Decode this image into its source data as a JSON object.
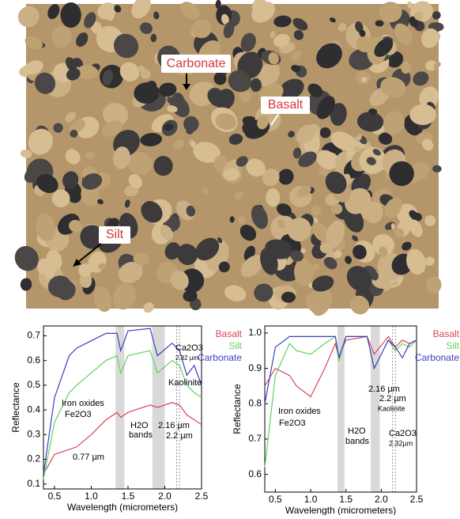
{
  "photo": {
    "labels": [
      "Carbonate",
      "Basalt",
      "Silt"
    ]
  },
  "chart_data": [
    {
      "type": "line",
      "xlabel": "Wavelength (micrometers)",
      "ylabel": "Reflectance",
      "x": [
        0.35,
        0.5,
        0.7,
        0.8,
        1.0,
        1.2,
        1.35,
        1.4,
        1.5,
        1.8,
        1.9,
        2.1,
        2.2,
        2.3,
        2.4,
        2.5
      ],
      "series": [
        {
          "name": "Basalt",
          "color": "#d9455a",
          "values": [
            0.14,
            0.22,
            0.24,
            0.25,
            0.3,
            0.36,
            0.39,
            0.37,
            0.39,
            0.42,
            0.41,
            0.43,
            0.42,
            0.38,
            0.36,
            0.34
          ]
        },
        {
          "name": "Silt",
          "color": "#5fd35f",
          "values": [
            0.12,
            0.35,
            0.47,
            0.5,
            0.55,
            0.6,
            0.62,
            0.55,
            0.62,
            0.64,
            0.55,
            0.6,
            0.58,
            0.5,
            0.47,
            0.45
          ]
        },
        {
          "name": "Carbonate",
          "color": "#3f3fbf",
          "values": [
            0.14,
            0.45,
            0.62,
            0.65,
            0.68,
            0.71,
            0.71,
            0.64,
            0.72,
            0.73,
            0.62,
            0.67,
            0.64,
            0.54,
            0.58,
            0.5
          ]
        }
      ],
      "xlim": [
        0.35,
        2.5
      ],
      "ylim": [
        0.08,
        0.74
      ],
      "xticks": [
        0.5,
        {
          "value": 1,
          "label": "1.0"
        },
        1.5,
        {
          "value": 2,
          "label": "2.0"
        },
        2.5
      ],
      "yticks": [
        0.1,
        0.2,
        0.3,
        0.4,
        0.5,
        0.6,
        0.7
      ],
      "shaded": [
        [
          1.33,
          1.45
        ],
        [
          1.83,
          2.0
        ]
      ],
      "vlines": [
        2.16,
        2.2
      ],
      "annotations": [
        "Ca2O3",
        "2.32 µm",
        "Kaolinite",
        "Iron oxides",
        "Fe2O3",
        "H2O",
        "bands",
        "2.16 µm",
        "2.2 µm",
        "0.77 µm"
      ]
    },
    {
      "type": "line",
      "xlabel": "Wavelength (micrometers)",
      "ylabel": "Reflectance",
      "x": [
        0.35,
        0.5,
        0.7,
        0.8,
        1.0,
        1.2,
        1.35,
        1.4,
        1.5,
        1.8,
        1.9,
        2.1,
        2.2,
        2.3,
        2.4,
        2.5
      ],
      "series": [
        {
          "name": "Basalt",
          "color": "#d9455a",
          "values": [
            0.85,
            0.9,
            0.88,
            0.85,
            0.82,
            0.9,
            0.97,
            0.93,
            0.98,
            0.99,
            0.94,
            0.99,
            0.96,
            0.98,
            0.97,
            0.98
          ]
        },
        {
          "name": "Silt",
          "color": "#5fd35f",
          "values": [
            0.62,
            0.88,
            0.97,
            0.95,
            0.94,
            0.97,
            0.99,
            0.92,
            0.99,
            0.99,
            0.9,
            0.98,
            0.95,
            0.97,
            0.96,
            0.98
          ]
        },
        {
          "name": "Carbonate",
          "color": "#3f3fbf",
          "values": [
            0.8,
            0.96,
            0.99,
            0.99,
            0.99,
            0.99,
            0.99,
            0.93,
            0.99,
            0.99,
            0.9,
            0.98,
            0.96,
            0.93,
            0.97,
            0.98
          ]
        }
      ],
      "xlim": [
        0.35,
        2.5
      ],
      "ylim": [
        0.55,
        1.02
      ],
      "xticks": [
        0.5,
        {
          "value": 1,
          "label": "1.0"
        },
        1.5,
        {
          "value": 2,
          "label": "2.0"
        },
        2.5
      ],
      "yticks": [
        0.6,
        0.7,
        0.8,
        0.9,
        {
          "value": 1,
          "label": "1.0"
        }
      ],
      "shaded": [
        [
          1.38,
          1.48
        ],
        [
          1.85,
          1.98
        ]
      ],
      "vlines": [
        2.16,
        2.2
      ],
      "annotations": [
        "Iron oxides",
        "Fe2O3",
        "H2O",
        "bands",
        "2.16 µm",
        "2.2 µm",
        "Kaolinite",
        "Ca2O3",
        "2.32µm"
      ]
    }
  ]
}
